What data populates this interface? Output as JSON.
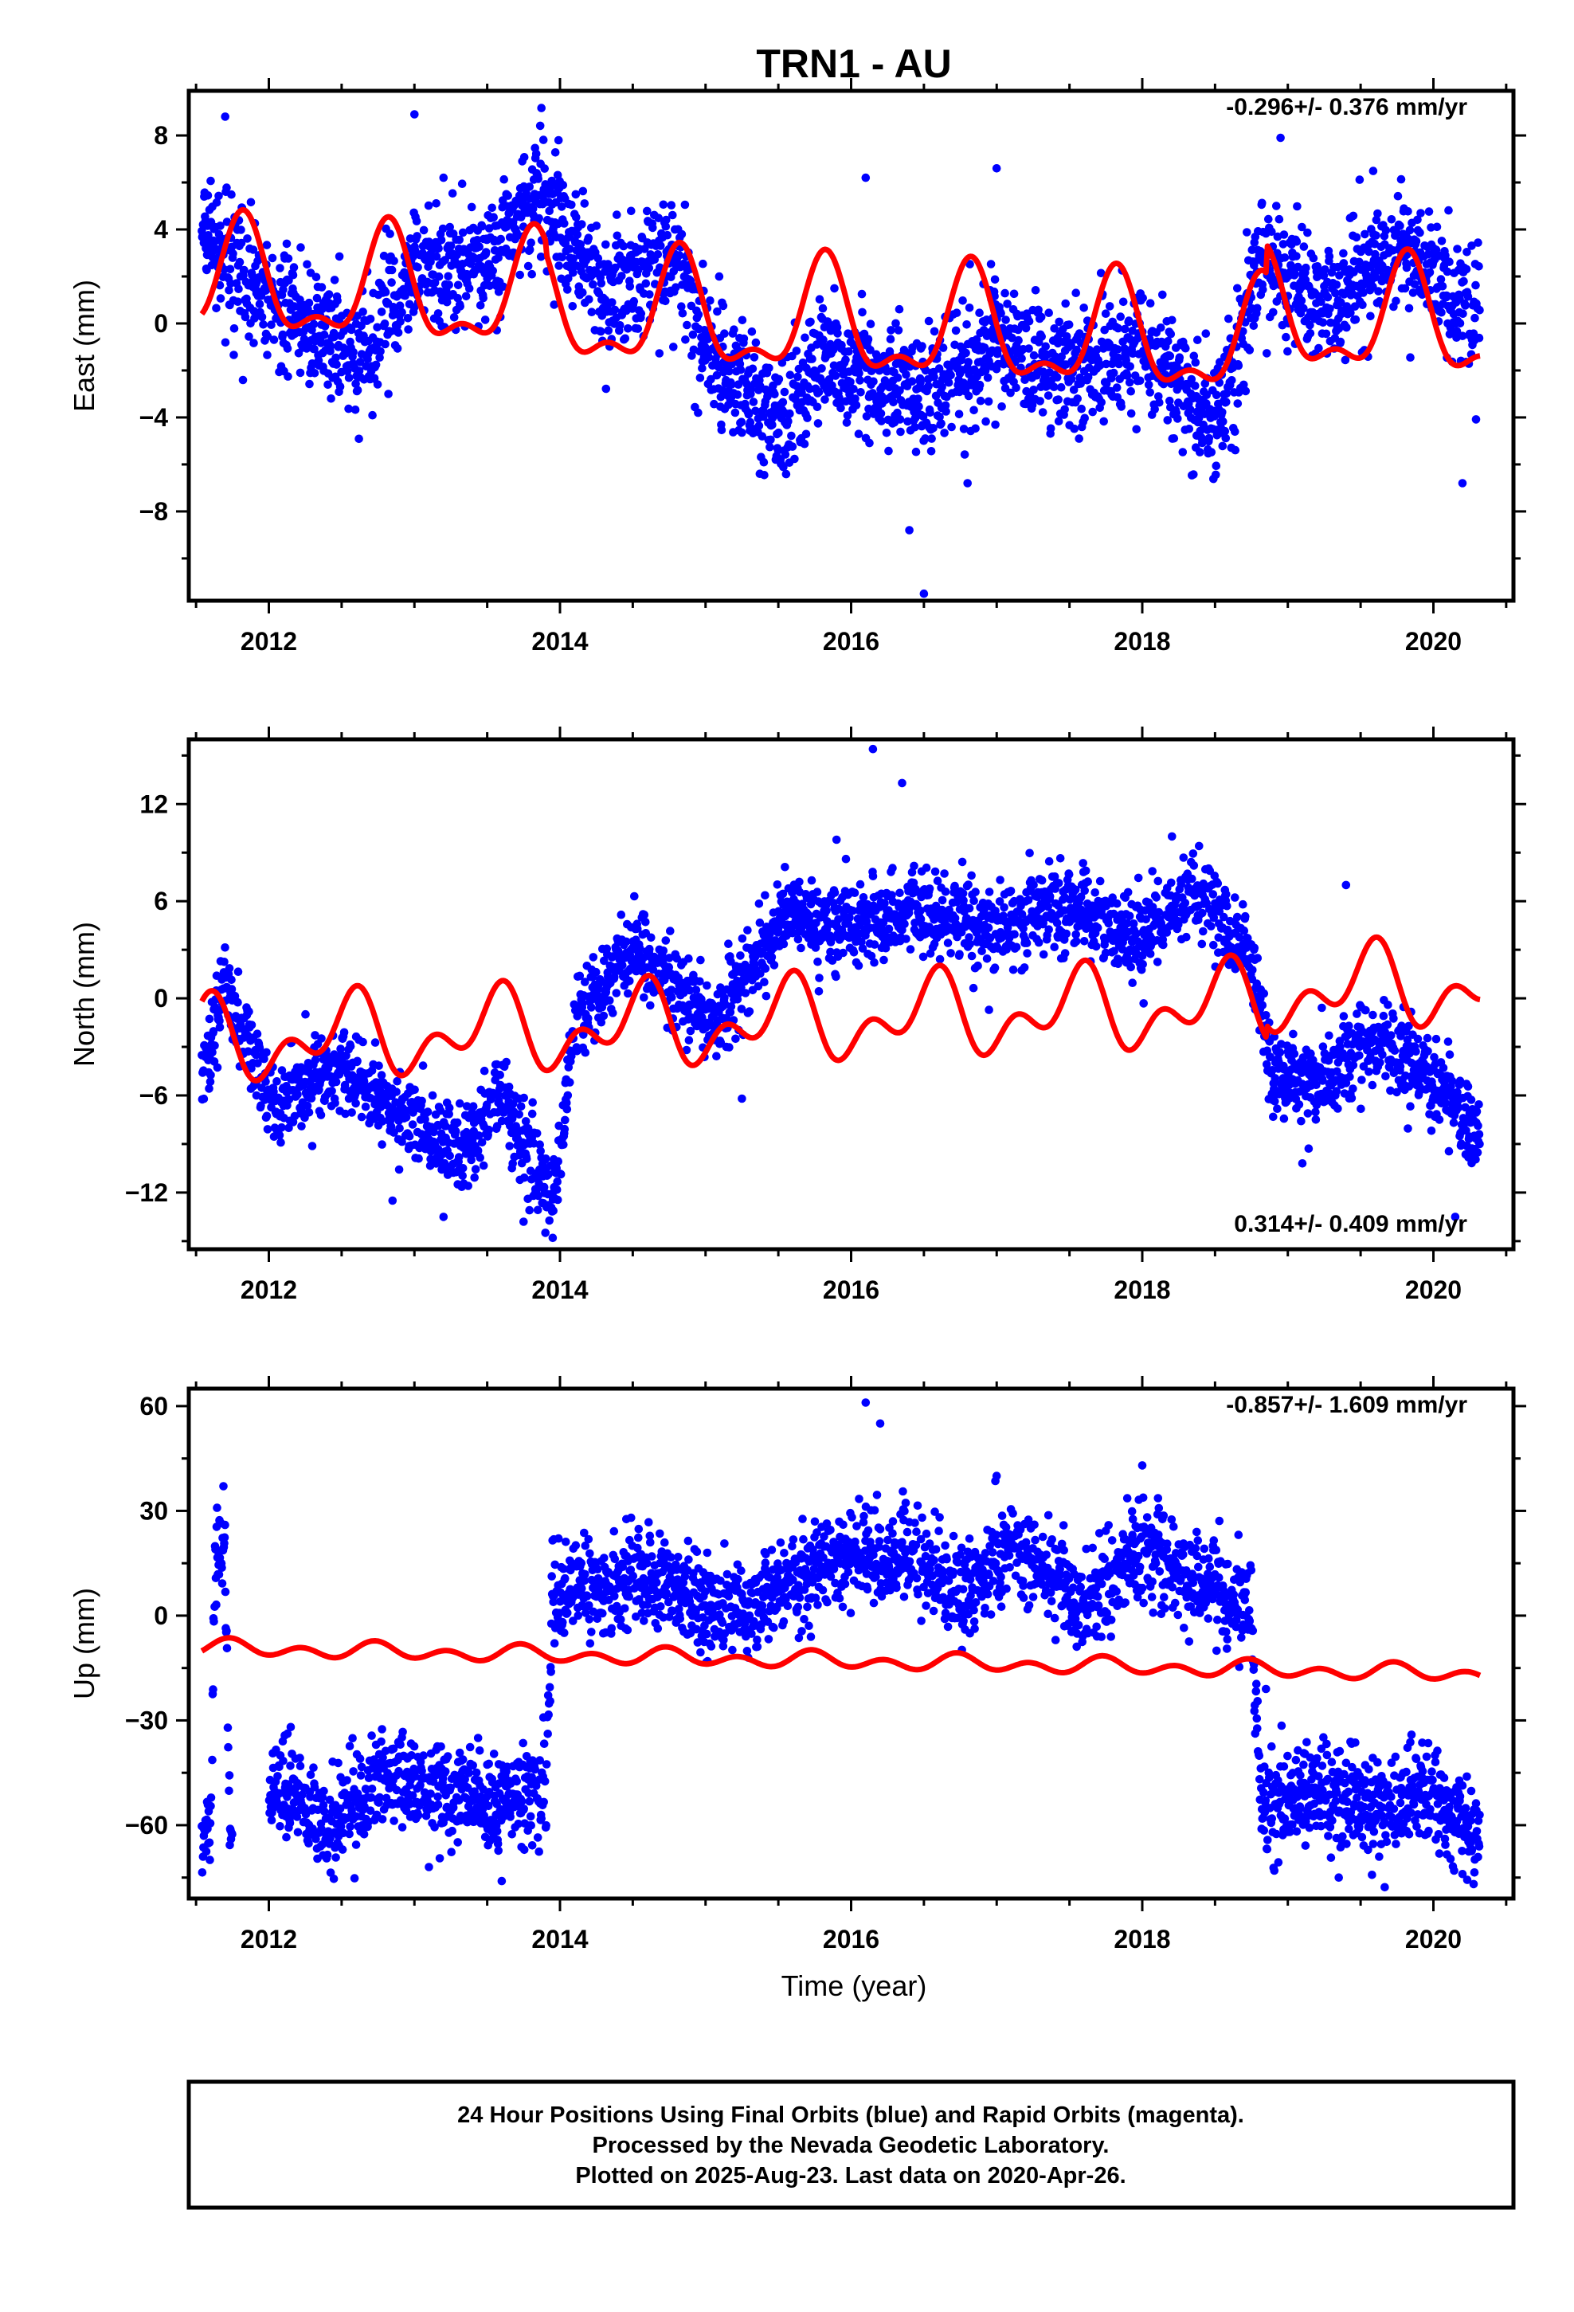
{
  "title": "TRN1 - AU",
  "colors": {
    "final_orbits": "#0000ff",
    "model": "#ff0000",
    "frame": "#000000"
  },
  "caption": {
    "line1": "24 Hour Positions Using Final Orbits (blue) and Rapid Orbits (magenta).",
    "line2": "Processed by the Nevada Geodetic Laboratory.",
    "line3": "Plotted on 2025-Aug-23. Last data on 2020-Apr-26."
  },
  "chart_data": [
    {
      "type": "scatter",
      "ylabel": "East (mm)",
      "xlabel": "",
      "rate_text": "-0.296+/- 0.376 mm/yr",
      "rate_position": "top-right",
      "xlim": [
        2011.45,
        2020.55
      ],
      "ylim": [
        -11.8,
        9.9
      ],
      "xticks": [
        2012,
        2014,
        2016,
        2018,
        2020
      ],
      "xtick_labels": [
        "2012",
        "2014",
        "2016",
        "2018",
        "2020"
      ],
      "yticks": [
        -8,
        -4,
        0,
        4,
        8
      ],
      "ytick_labels": [
        "−8",
        "−4",
        "0",
        "4",
        "8"
      ],
      "data_start": 2011.54,
      "data_end": 2020.32,
      "gaps": [],
      "trend": [
        [
          2011.5,
          4.2
        ],
        [
          2012.0,
          1.0
        ],
        [
          2012.6,
          -1.5
        ],
        [
          2013.0,
          2.3
        ],
        [
          2013.5,
          2.5
        ],
        [
          2013.85,
          5.8
        ],
        [
          2014.3,
          1.2
        ],
        [
          2014.8,
          3.2
        ],
        [
          2015.0,
          -1.0
        ],
        [
          2015.5,
          -4.2
        ],
        [
          2015.8,
          -1.5
        ],
        [
          2016.5,
          -3.0
        ],
        [
          2017.0,
          -1.0
        ],
        [
          2017.5,
          -2.0
        ],
        [
          2018.0,
          -0.8
        ],
        [
          2018.5,
          -4.2
        ],
        [
          2018.65,
          -2.0
        ],
        [
          2018.8,
          3.0
        ],
        [
          2019.3,
          0.5
        ],
        [
          2019.8,
          3.5
        ],
        [
          2020.35,
          -0.5
        ]
      ],
      "noise_sd": 1.3,
      "outliers": [
        [
          2011.7,
          8.8
        ],
        [
          2013.0,
          8.9
        ],
        [
          2013.2,
          6.2
        ],
        [
          2016.1,
          6.2
        ],
        [
          2016.4,
          -8.8
        ],
        [
          2016.5,
          -11.5
        ],
        [
          2016.8,
          -6.8
        ],
        [
          2017.0,
          6.6
        ],
        [
          2018.95,
          7.9
        ],
        [
          2020.2,
          -6.8
        ]
      ],
      "model": {
        "offset": 0.4,
        "rate": -0.296,
        "epoch": 2016.0,
        "annual_amp": 2.2,
        "annual_phase": 2011.57,
        "semi_amp": 1.0,
        "semi_phase": 2011.7,
        "jumps": [
          [
            2013.9,
            -0.5
          ],
          [
            2018.85,
            1.2
          ]
        ]
      }
    },
    {
      "type": "scatter",
      "ylabel": "North (mm)",
      "xlabel": "",
      "rate_text": "0.314+/- 0.409 mm/yr",
      "rate_position": "bottom-right",
      "xlim": [
        2011.45,
        2020.55
      ],
      "ylim": [
        -15.5,
        16.0
      ],
      "xticks": [
        2012,
        2014,
        2016,
        2018,
        2020
      ],
      "xtick_labels": [
        "2012",
        "2014",
        "2016",
        "2018",
        "2020"
      ],
      "yticks": [
        -12,
        -6,
        0,
        6,
        12
      ],
      "ytick_labels": [
        "−12",
        "−6",
        "0",
        "6",
        "12"
      ],
      "data_start": 2011.54,
      "data_end": 2020.32,
      "gaps": [],
      "trend": [
        [
          2011.55,
          -5.0
        ],
        [
          2011.7,
          1.5
        ],
        [
          2011.75,
          -1.0
        ],
        [
          2012.05,
          -6.5
        ],
        [
          2012.5,
          -4.0
        ],
        [
          2012.8,
          -6.5
        ],
        [
          2013.0,
          -7.5
        ],
        [
          2013.3,
          -10.0
        ],
        [
          2013.6,
          -6.0
        ],
        [
          2013.85,
          -10.5
        ],
        [
          2013.95,
          -12.5
        ],
        [
          2014.1,
          -1.5
        ],
        [
          2014.5,
          3.0
        ],
        [
          2014.8,
          0.5
        ],
        [
          2015.0,
          -1.5
        ],
        [
          2015.4,
          3.0
        ],
        [
          2015.6,
          6.0
        ],
        [
          2015.8,
          4.0
        ],
        [
          2016.5,
          5.5
        ],
        [
          2017.0,
          4.0
        ],
        [
          2017.5,
          6.0
        ],
        [
          2018.0,
          3.5
        ],
        [
          2018.4,
          6.5
        ],
        [
          2018.75,
          2.5
        ],
        [
          2018.9,
          -4.5
        ],
        [
          2019.2,
          -5.5
        ],
        [
          2019.6,
          -2.5
        ],
        [
          2020.0,
          -5.0
        ],
        [
          2020.3,
          -8.5
        ]
      ],
      "noise_sd": 1.3,
      "outliers": [
        [
          2016.15,
          15.4
        ],
        [
          2016.35,
          13.3
        ],
        [
          2015.9,
          9.8
        ],
        [
          2019.4,
          7.0
        ],
        [
          2013.95,
          -14.8
        ],
        [
          2013.75,
          -13.8
        ],
        [
          2013.2,
          -13.5
        ],
        [
          2012.85,
          -12.5
        ],
        [
          2020.15,
          -13.5
        ],
        [
          2019.1,
          -10.2
        ],
        [
          2015.25,
          -6.2
        ]
      ],
      "model": {
        "offset": -1.3,
        "rate": 0.314,
        "epoch": 2016.0,
        "annual_amp": 1.8,
        "annual_phase": 2011.3,
        "semi_amp": 1.5,
        "semi_phase": 2011.5,
        "jumps": [
          [
            2018.85,
            0.8
          ]
        ]
      }
    },
    {
      "type": "scatter",
      "ylabel": "Up (mm)",
      "xlabel": "Time (year)",
      "rate_text": "-0.857+/- 1.609 mm/yr",
      "rate_position": "top-right",
      "xlim": [
        2011.45,
        2020.55
      ],
      "ylim": [
        -81.0,
        65.0
      ],
      "xticks": [
        2012,
        2014,
        2016,
        2018,
        2020
      ],
      "xtick_labels": [
        "2012",
        "2014",
        "2016",
        "2018",
        "2020"
      ],
      "yticks": [
        -60,
        -30,
        0,
        30,
        60
      ],
      "ytick_labels": [
        "−60",
        "−30",
        "0",
        "30",
        "60"
      ],
      "data_start": 2011.54,
      "data_end": 2020.32,
      "gaps": [
        [
          2011.75,
          2012.0
        ]
      ],
      "trend": [
        [
          2011.55,
          -63.0
        ],
        [
          2011.6,
          -63.0
        ],
        [
          2011.63,
          18.0
        ],
        [
          2011.7,
          15.0
        ],
        [
          2011.73,
          -60.0
        ],
        [
          2012.1,
          -48.0
        ],
        [
          2012.4,
          -62.0
        ],
        [
          2012.8,
          -45.0
        ],
        [
          2013.0,
          -48.0
        ],
        [
          2013.5,
          -55.0
        ],
        [
          2013.9,
          -50.0
        ],
        [
          2013.95,
          5.0
        ],
        [
          2014.6,
          12.0
        ],
        [
          2015.0,
          2.0
        ],
        [
          2015.4,
          2.0
        ],
        [
          2015.8,
          15.0
        ],
        [
          2016.3,
          18.0
        ],
        [
          2016.8,
          5.0
        ],
        [
          2017.1,
          22.0
        ],
        [
          2017.6,
          2.0
        ],
        [
          2018.0,
          20.0
        ],
        [
          2018.3,
          10.0
        ],
        [
          2018.75,
          2.0
        ],
        [
          2018.82,
          -55.0
        ],
        [
          2019.2,
          -50.0
        ],
        [
          2019.6,
          -55.0
        ],
        [
          2020.0,
          -50.0
        ],
        [
          2020.3,
          -63.0
        ]
      ],
      "noise_sd": 7.0,
      "outliers": [
        [
          2016.1,
          61.0
        ],
        [
          2016.2,
          55.0
        ],
        [
          2013.1,
          -72.0
        ],
        [
          2013.6,
          -76.0
        ],
        [
          2018.85,
          -21.0
        ],
        [
          2019.35,
          -75.0
        ],
        [
          2020.2,
          -74.0
        ],
        [
          2017.0,
          40.0
        ],
        [
          2018.0,
          43.0
        ]
      ],
      "model": {
        "offset": -13.0,
        "rate": -0.857,
        "epoch": 2016.0,
        "annual_amp": 1.2,
        "annual_phase": 2011.5,
        "semi_amp": 1.8,
        "semi_phase": 2011.6,
        "jumps": []
      }
    }
  ]
}
